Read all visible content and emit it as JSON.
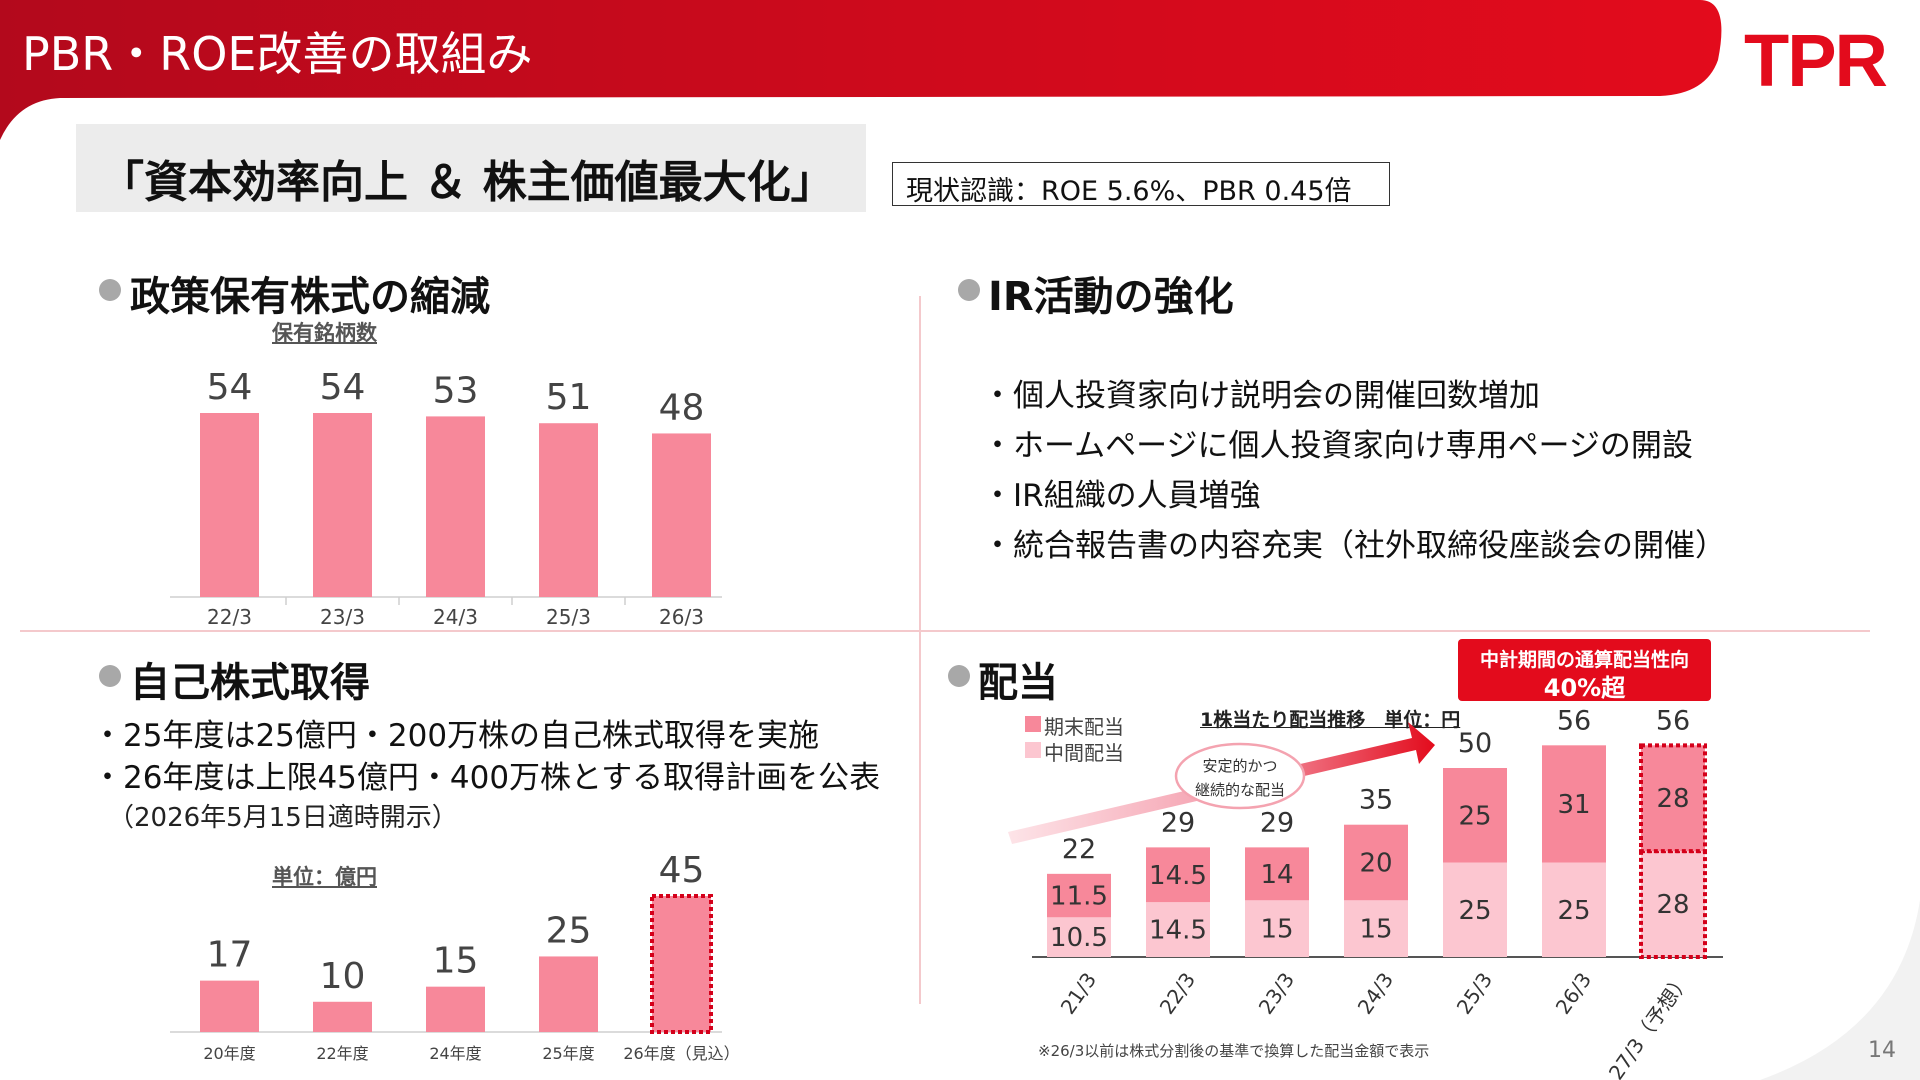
{
  "header": {
    "title": "PBR・ROE改善の取組み",
    "logo_text": "TPR",
    "brand_color": "#e30b1c",
    "page_number": "14"
  },
  "slogan": "「資本効率向上 ＆ 株主価値最大化」",
  "status": "現状認識：ROE 5.6%、PBR 0.45倍",
  "holdings": {
    "title": "政策保有株式の縮減",
    "sublabel": "保有銘柄数"
  },
  "ir": {
    "title": "IR活動の強化",
    "items": [
      "・個人投資家向け説明会の開催回数増加",
      "・ホームページに個人投資家向け専用ページの開設",
      "・IR組織の人員増強",
      "・統合報告書の内容充実（社外取締役座談会の開催）"
    ]
  },
  "buyback": {
    "title": "自己株式取得",
    "lines": [
      "・25年度は25億円・200万株の自己株式取得を実施",
      "・26年度は上限45億円・400万株とする取得計画を公表"
    ],
    "note": "（2026年5月15日適時開示）",
    "unit": "単位：億円"
  },
  "dividend": {
    "title": "配当",
    "legend_final": "期末配当",
    "legend_interim": "中間配当",
    "chart_label": "1株当たり配当推移　単位：円",
    "arrow_text": [
      "安定的かつ",
      "継続的な配当"
    ],
    "target_line1": "中計期間の通算配当性向",
    "target_line2": "40%超",
    "footnote": "※26/3以前は株式分割後の基準で換算した配当金額で表示"
  },
  "chart_data": [
    {
      "type": "bar",
      "title": "保有銘柄数",
      "categories": [
        "22/3",
        "23/3",
        "24/3",
        "25/3",
        "26/3"
      ],
      "values": [
        54,
        54,
        53,
        51,
        48
      ],
      "ylim": [
        0,
        54
      ],
      "color": "#f7889a"
    },
    {
      "type": "bar",
      "title": "単位：億円",
      "categories": [
        "20年度",
        "22年度",
        "24年度",
        "25年度",
        "26年度（見込）"
      ],
      "values": [
        17,
        10,
        15,
        25,
        45
      ],
      "forecast_index": 4,
      "ylim": [
        0,
        45
      ],
      "color": "#f7889a",
      "forecast_border": "#d4001a"
    },
    {
      "type": "bar",
      "stacked": true,
      "title": "1株当たり配当推移　単位：円",
      "categories": [
        "21/3",
        "22/3",
        "23/3",
        "24/3",
        "25/3",
        "26/3",
        "27/3（予想）"
      ],
      "series": [
        {
          "name": "中間配当",
          "values": [
            10.5,
            14.5,
            15,
            15,
            25,
            25,
            28
          ],
          "color": "#fcc6d0"
        },
        {
          "name": "期末配当",
          "values": [
            11.5,
            14.5,
            14,
            20,
            25,
            31,
            28
          ],
          "color": "#f7889a"
        }
      ],
      "totals": [
        22,
        29,
        29,
        35,
        50,
        56,
        56
      ],
      "forecast_index": 6,
      "ylim": [
        0,
        56
      ]
    }
  ]
}
